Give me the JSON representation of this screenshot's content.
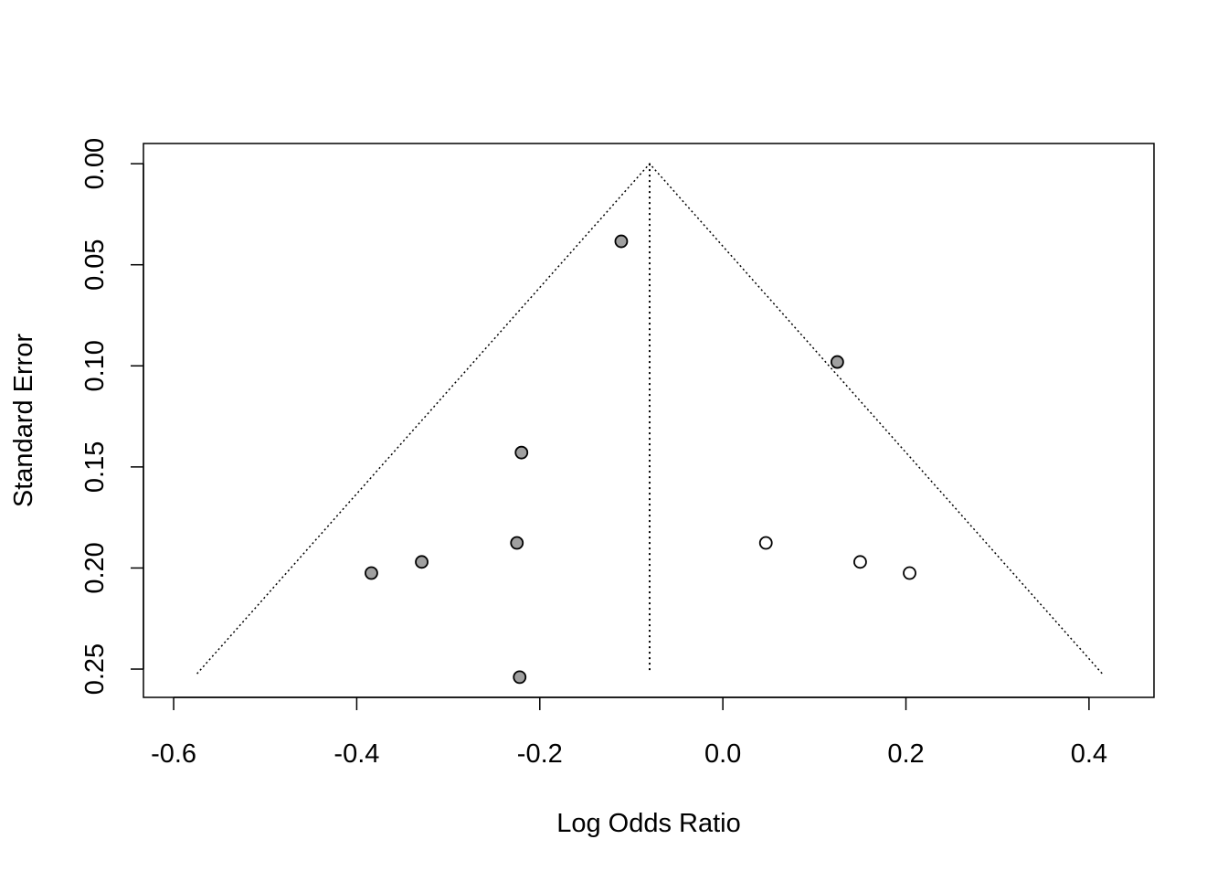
{
  "chart_data": {
    "type": "scatter",
    "x_label": "Log Odds Ratio",
    "y_label": "Standard Error",
    "xlim": [
      -0.633,
      0.471
    ],
    "ylim": [
      -0.01,
      0.264
    ],
    "y_reversed": true,
    "xticks": [
      -0.6,
      -0.4,
      -0.2,
      {
        "value": 0,
        "label": "0.0"
      },
      0.2,
      0.4
    ],
    "yticks": [
      {
        "value": 0,
        "label": "0.00"
      },
      {
        "value": 0.05,
        "label": "0.05"
      },
      {
        "value": 0.1,
        "label": "0.10"
      },
      {
        "value": 0.15,
        "label": "0.15"
      },
      {
        "value": 0.2,
        "label": "0.20"
      },
      {
        "value": 0.25,
        "label": "0.25"
      }
    ],
    "series": [
      {
        "color": "#a0a0a0",
        "x": [
          -0.111,
          0.125,
          -0.22,
          -0.225,
          -0.329,
          -0.384,
          -0.222
        ],
        "values": [
          0.0384,
          0.0981,
          0.1429,
          0.1876,
          0.197,
          0.2025,
          0.254
        ]
      },
      {
        "color": "#ffffff",
        "x": [
          0.047,
          0.15,
          0.204
        ],
        "values": [
          0.1876,
          0.197,
          0.2025
        ]
      }
    ],
    "funnel": {
      "center": -0.08,
      "se_max": 0.2523,
      "left": -0.5745,
      "right": 0.4145
    }
  }
}
